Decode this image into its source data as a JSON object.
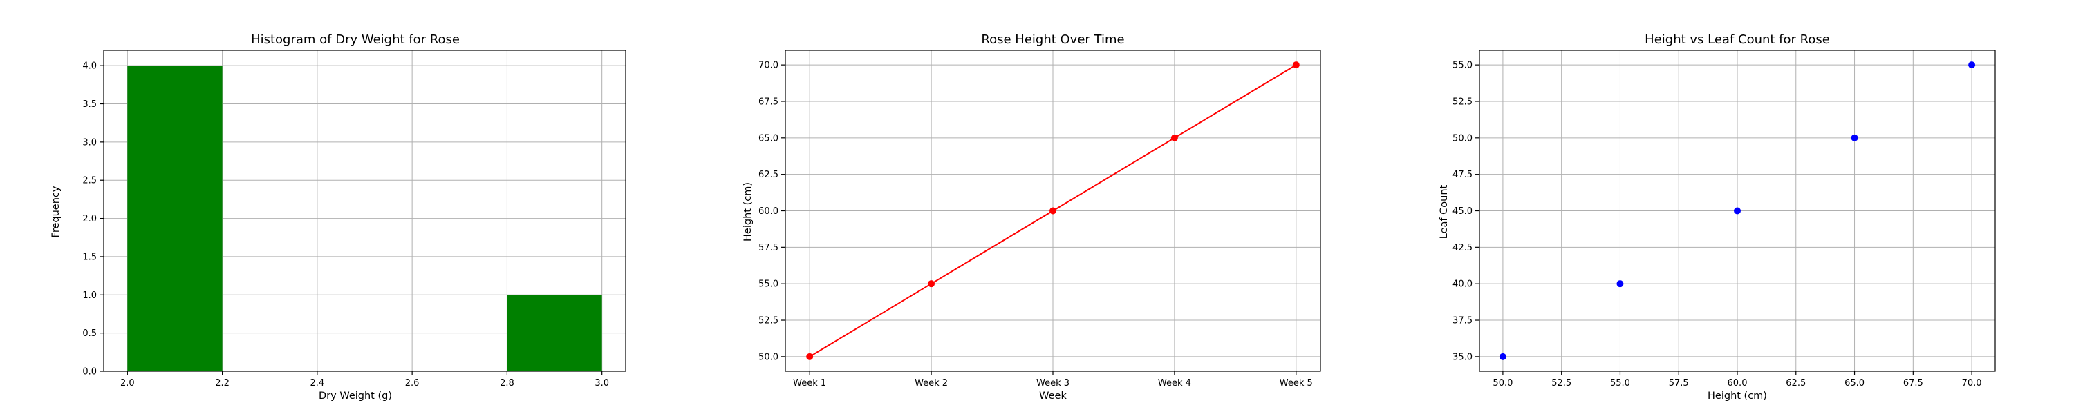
{
  "chart_data": [
    {
      "type": "bar",
      "title": "Histogram of Dry Weight for Rose",
      "xlabel": "Dry Weight (g)",
      "ylabel": "Frequency",
      "bins": [
        {
          "from": 2.0,
          "to": 2.2,
          "count": 4
        },
        {
          "from": 2.2,
          "to": 2.4,
          "count": 0
        },
        {
          "from": 2.4,
          "to": 2.6,
          "count": 0
        },
        {
          "from": 2.6,
          "to": 2.8,
          "count": 0
        },
        {
          "from": 2.8,
          "to": 3.0,
          "count": 1
        }
      ],
      "xlim": [
        1.95,
        3.05
      ],
      "ylim": [
        0,
        4.2
      ],
      "xticks": [
        "2.0",
        "2.2",
        "2.4",
        "2.6",
        "2.8",
        "3.0"
      ],
      "yticks": [
        "0.0",
        "0.5",
        "1.0",
        "1.5",
        "2.0",
        "2.5",
        "3.0",
        "3.5",
        "4.0"
      ],
      "color": "#008000",
      "grid": true
    },
    {
      "type": "line",
      "title": "Rose Height Over Time",
      "xlabel": "Week",
      "ylabel": "Height (cm)",
      "categories": [
        "Week 1",
        "Week 2",
        "Week 3",
        "Week 4",
        "Week 5"
      ],
      "values": [
        50,
        55,
        60,
        65,
        70
      ],
      "xlim": [
        -0.2,
        4.2
      ],
      "ylim": [
        49.0,
        71.0
      ],
      "yticks": [
        "50.0",
        "52.5",
        "55.0",
        "57.5",
        "60.0",
        "62.5",
        "65.0",
        "67.5",
        "70.0"
      ],
      "color": "#ff0000",
      "marker": "circle",
      "grid": true
    },
    {
      "type": "scatter",
      "title": "Height vs Leaf Count for Rose",
      "xlabel": "Height (cm)",
      "ylabel": "Leaf Count",
      "x": [
        50,
        55,
        60,
        65,
        70
      ],
      "y": [
        35,
        40,
        45,
        50,
        55
      ],
      "xlim": [
        49.0,
        71.0
      ],
      "ylim": [
        34.0,
        56.0
      ],
      "xticks": [
        "50.0",
        "52.5",
        "55.0",
        "57.5",
        "60.0",
        "62.5",
        "65.0",
        "67.5",
        "70.0"
      ],
      "yticks": [
        "35.0",
        "37.5",
        "40.0",
        "42.5",
        "45.0",
        "47.5",
        "50.0",
        "52.5",
        "55.0"
      ],
      "color": "#0000ff",
      "grid": true
    }
  ]
}
